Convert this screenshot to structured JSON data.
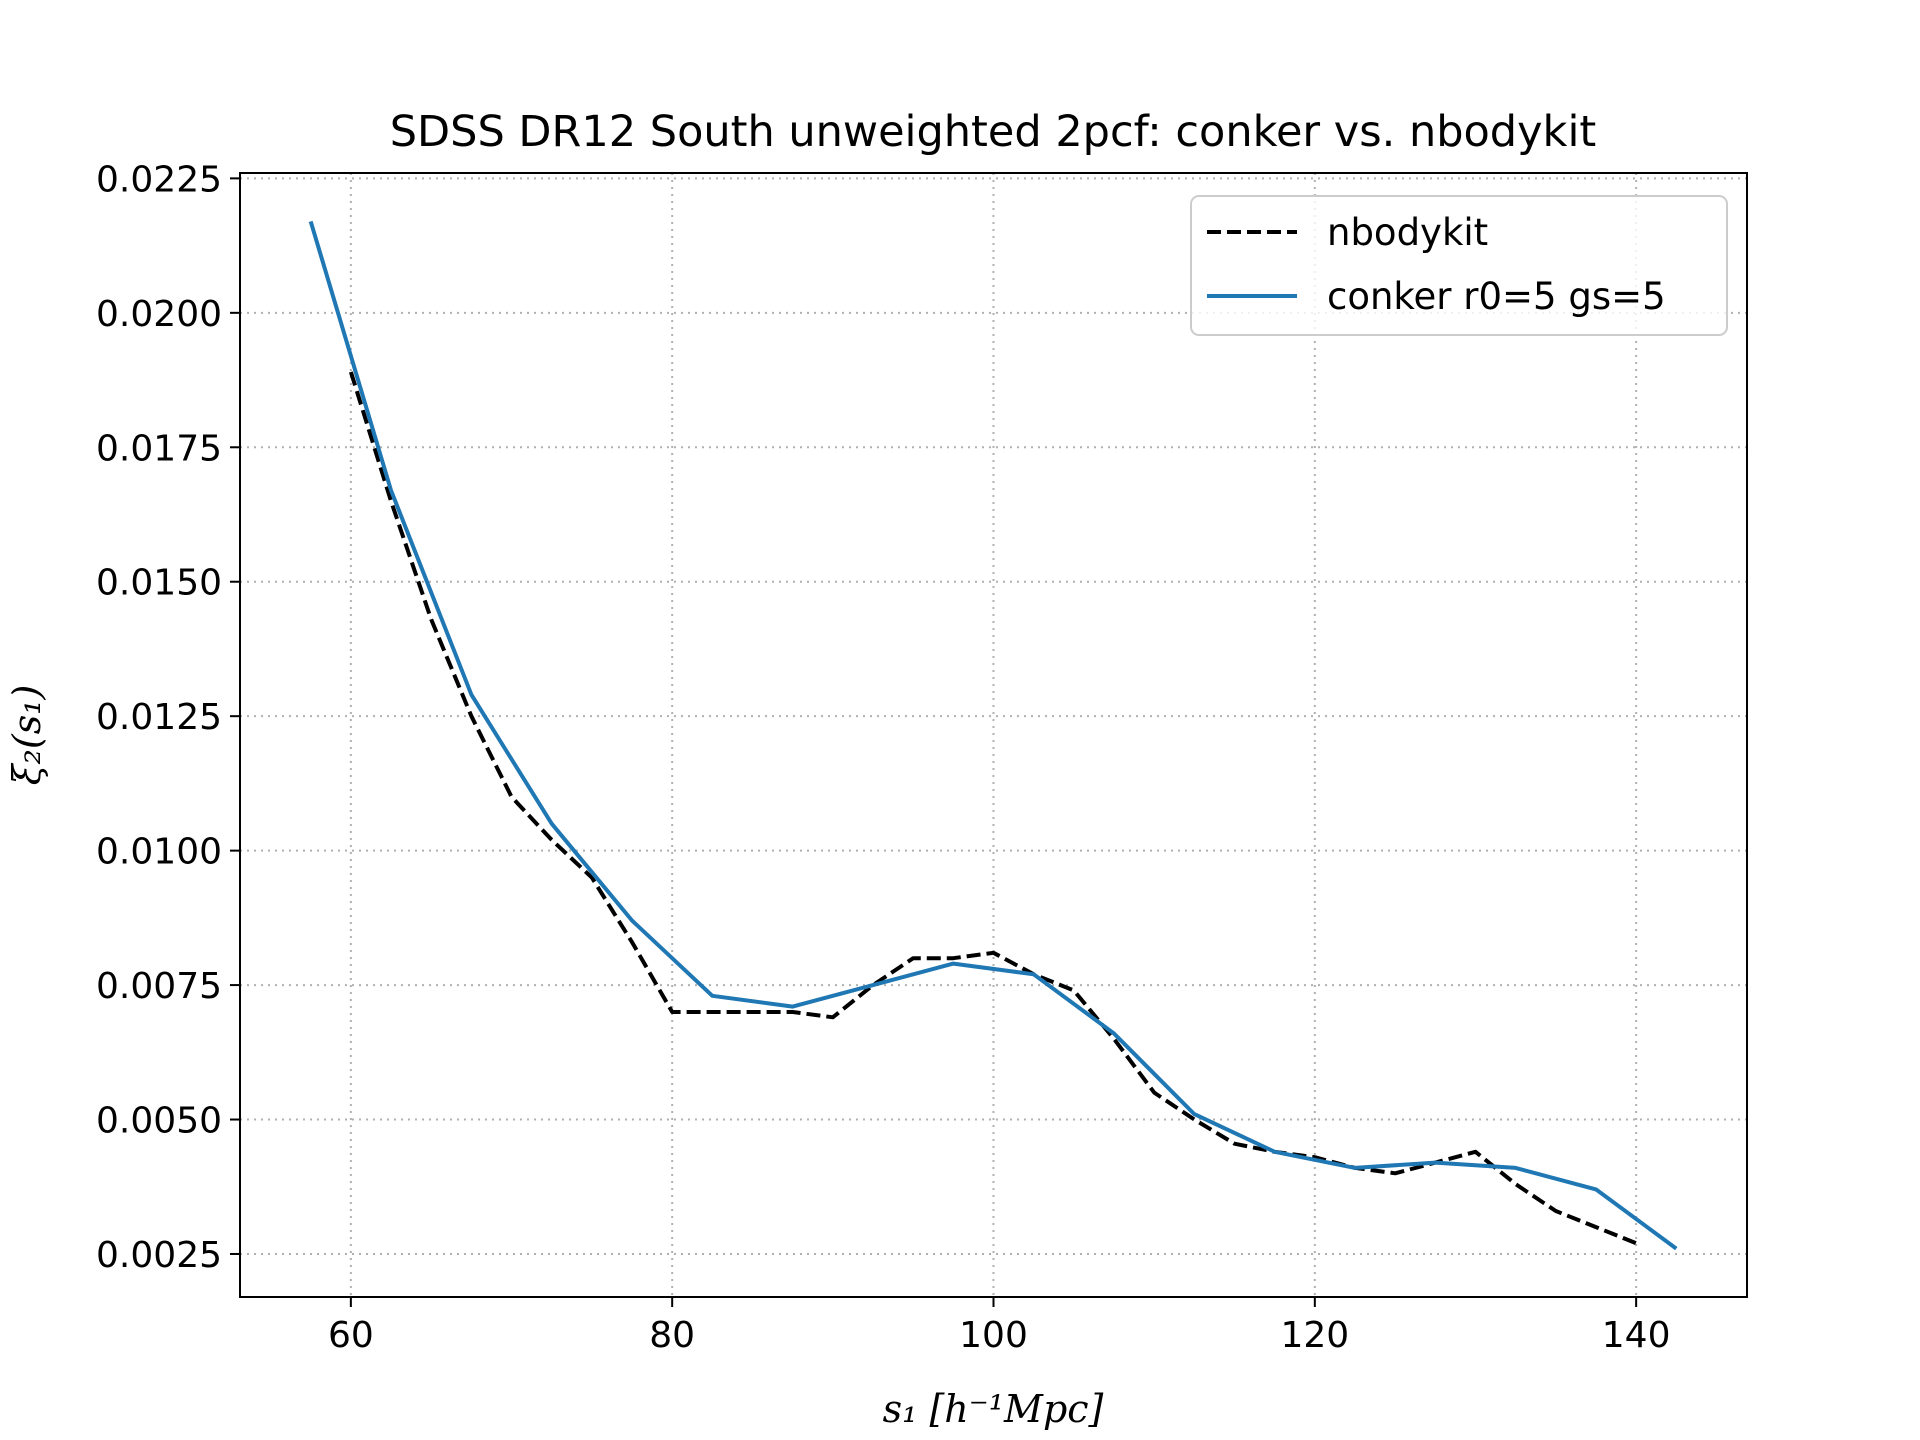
{
  "chart_data": {
    "type": "line",
    "title": "SDSS DR12 South unweighted 2pcf: conker vs. nbodykit",
    "xlabel": "s₁ [h⁻¹Mpc]",
    "ylabel": "ξ₂(s₁)",
    "xlim": [
      53.1,
      146.9
    ],
    "ylim": [
      0.0017,
      0.0226
    ],
    "xticks": [
      60,
      80,
      100,
      120,
      140
    ],
    "xtick_labels": [
      "60",
      "80",
      "100",
      "120",
      "140"
    ],
    "yticks": [
      0.0025,
      0.005,
      0.0075,
      0.01,
      0.0125,
      0.015,
      0.0175,
      0.02,
      0.0225
    ],
    "ytick_labels": [
      "0.0025",
      "0.0050",
      "0.0075",
      "0.0100",
      "0.0125",
      "0.0150",
      "0.0175",
      "0.0200",
      "0.0225"
    ],
    "grid": true,
    "legend_position": "upper right",
    "series": [
      {
        "name": "nbodykit",
        "color": "#000000",
        "dash": "dashed",
        "x": [
          60,
          62.5,
          65,
          67.5,
          70,
          72.5,
          75,
          77.5,
          80,
          82.5,
          85,
          87.5,
          90,
          92.5,
          95,
          97.5,
          100,
          102.5,
          105,
          107.5,
          110,
          112.5,
          115,
          117.5,
          120,
          122.5,
          125,
          127.5,
          130,
          132.5,
          135,
          137.5,
          140
        ],
        "y": [
          0.0189,
          0.0165,
          0.0143,
          0.0125,
          0.011,
          0.0102,
          0.0095,
          0.0083,
          0.007,
          0.007,
          0.007,
          0.007,
          0.0069,
          0.0075,
          0.008,
          0.008,
          0.0081,
          0.0077,
          0.0074,
          0.0065,
          0.0055,
          0.005,
          0.00455,
          0.0044,
          0.0043,
          0.0041,
          0.004,
          0.0042,
          0.0044,
          0.0038,
          0.0033,
          0.003,
          0.0027
        ]
      },
      {
        "name": "conker r0=5 gs=5",
        "color": "#1f77b4",
        "dash": "solid",
        "x": [
          57.5,
          62.5,
          67.5,
          72.5,
          77.5,
          82.5,
          87.5,
          92.5,
          97.5,
          102.5,
          107.5,
          112.5,
          117.5,
          122.5,
          127.5,
          132.5,
          137.5,
          142.5
        ],
        "y": [
          0.0217,
          0.0167,
          0.0129,
          0.0105,
          0.0087,
          0.0073,
          0.0071,
          0.0075,
          0.0079,
          0.0077,
          0.0066,
          0.0051,
          0.0044,
          0.0041,
          0.0042,
          0.0041,
          0.0037,
          0.0026
        ]
      }
    ]
  }
}
